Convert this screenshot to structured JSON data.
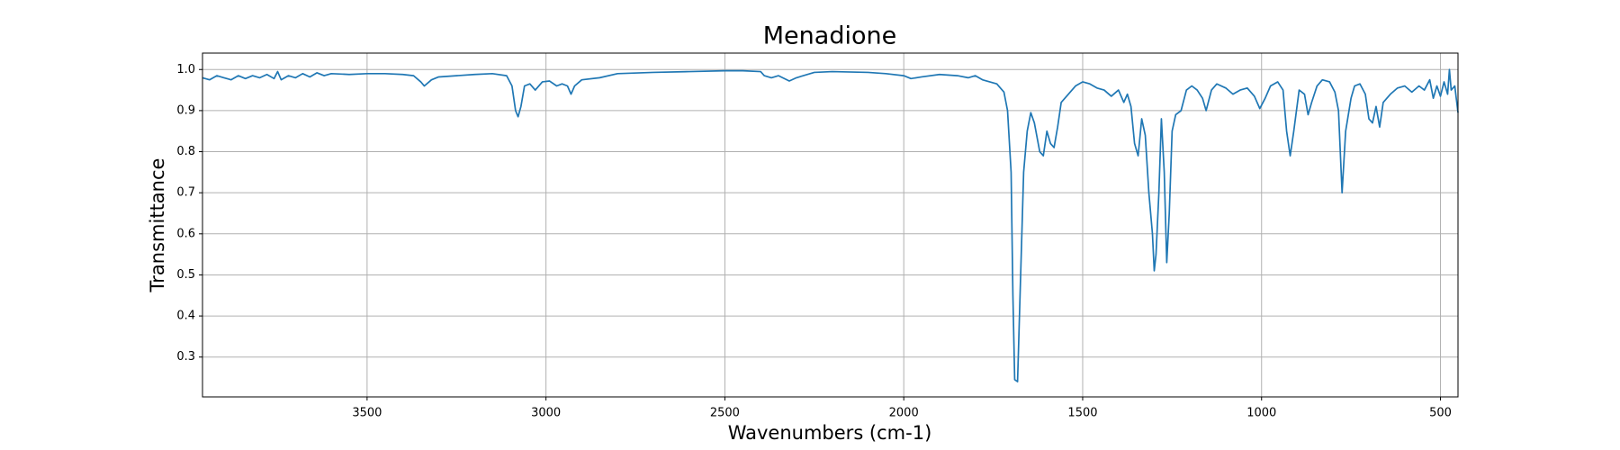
{
  "chart_data": {
    "type": "line",
    "title": "Menadione",
    "x_label": "Wavenumbers (cm-1)",
    "y_label": "Transmittance",
    "color": "#1f77b4",
    "grid": true,
    "xlim": [
      3960,
      451
    ],
    "ylim": [
      0.203,
      1.04
    ],
    "xticks": [
      3500,
      3000,
      2500,
      2000,
      1500,
      1000,
      500
    ],
    "yticks": [
      0.3,
      0.4,
      0.5,
      0.6,
      0.7,
      0.8,
      0.9,
      {
        "value": 1,
        "label": "1.0"
      }
    ],
    "x": [
      3960,
      3940,
      3920,
      3900,
      3880,
      3860,
      3840,
      3820,
      3800,
      3780,
      3760,
      3750,
      3740,
      3720,
      3700,
      3680,
      3660,
      3640,
      3620,
      3600,
      3550,
      3500,
      3450,
      3400,
      3370,
      3350,
      3340,
      3320,
      3300,
      3250,
      3200,
      3150,
      3110,
      3095,
      3085,
      3078,
      3070,
      3060,
      3045,
      3030,
      3010,
      2990,
      2970,
      2955,
      2940,
      2930,
      2920,
      2900,
      2850,
      2800,
      2700,
      2600,
      2500,
      2450,
      2400,
      2390,
      2370,
      2350,
      2320,
      2300,
      2250,
      2200,
      2100,
      2050,
      2000,
      1980,
      1950,
      1900,
      1850,
      1820,
      1800,
      1780,
      1760,
      1740,
      1720,
      1710,
      1700,
      1695,
      1690,
      1682,
      1675,
      1665,
      1655,
      1645,
      1635,
      1620,
      1610,
      1600,
      1590,
      1580,
      1570,
      1560,
      1540,
      1520,
      1500,
      1480,
      1460,
      1440,
      1420,
      1400,
      1385,
      1375,
      1365,
      1355,
      1345,
      1335,
      1325,
      1315,
      1305,
      1300,
      1295,
      1287,
      1280,
      1272,
      1265,
      1258,
      1250,
      1240,
      1225,
      1210,
      1195,
      1180,
      1165,
      1155,
      1140,
      1125,
      1100,
      1080,
      1060,
      1040,
      1020,
      1005,
      990,
      975,
      955,
      940,
      930,
      920,
      910,
      895,
      880,
      870,
      860,
      845,
      830,
      810,
      795,
      785,
      775,
      765,
      750,
      740,
      725,
      710,
      700,
      690,
      680,
      670,
      660,
      640,
      620,
      600,
      580,
      560,
      545,
      530,
      520,
      510,
      500,
      490,
      480,
      475,
      470,
      460,
      451
    ],
    "values": [
      0.98,
      0.975,
      0.985,
      0.98,
      0.975,
      0.985,
      0.978,
      0.985,
      0.98,
      0.988,
      0.978,
      0.995,
      0.975,
      0.985,
      0.98,
      0.99,
      0.982,
      0.992,
      0.985,
      0.99,
      0.988,
      0.99,
      0.99,
      0.988,
      0.985,
      0.97,
      0.96,
      0.975,
      0.982,
      0.985,
      0.988,
      0.99,
      0.985,
      0.96,
      0.9,
      0.885,
      0.91,
      0.96,
      0.965,
      0.95,
      0.97,
      0.972,
      0.96,
      0.965,
      0.96,
      0.94,
      0.96,
      0.975,
      0.98,
      0.99,
      0.993,
      0.995,
      0.997,
      0.997,
      0.995,
      0.985,
      0.98,
      0.985,
      0.972,
      0.98,
      0.993,
      0.995,
      0.993,
      0.99,
      0.985,
      0.978,
      0.982,
      0.988,
      0.985,
      0.98,
      0.985,
      0.975,
      0.97,
      0.965,
      0.945,
      0.9,
      0.75,
      0.45,
      0.245,
      0.24,
      0.45,
      0.75,
      0.85,
      0.895,
      0.87,
      0.8,
      0.79,
      0.85,
      0.82,
      0.81,
      0.86,
      0.92,
      0.94,
      0.96,
      0.97,
      0.965,
      0.955,
      0.95,
      0.935,
      0.95,
      0.92,
      0.94,
      0.91,
      0.82,
      0.79,
      0.88,
      0.84,
      0.7,
      0.6,
      0.51,
      0.55,
      0.7,
      0.88,
      0.75,
      0.53,
      0.65,
      0.85,
      0.89,
      0.9,
      0.95,
      0.96,
      0.95,
      0.93,
      0.9,
      0.95,
      0.965,
      0.955,
      0.94,
      0.95,
      0.955,
      0.935,
      0.905,
      0.93,
      0.96,
      0.97,
      0.95,
      0.85,
      0.79,
      0.85,
      0.95,
      0.94,
      0.89,
      0.92,
      0.96,
      0.975,
      0.97,
      0.945,
      0.9,
      0.7,
      0.85,
      0.93,
      0.96,
      0.965,
      0.94,
      0.88,
      0.87,
      0.91,
      0.86,
      0.92,
      0.94,
      0.955,
      0.96,
      0.945,
      0.96,
      0.95,
      0.975,
      0.93,
      0.96,
      0.935,
      0.97,
      0.94,
      1.0,
      0.95,
      0.96,
      0.895
    ]
  }
}
